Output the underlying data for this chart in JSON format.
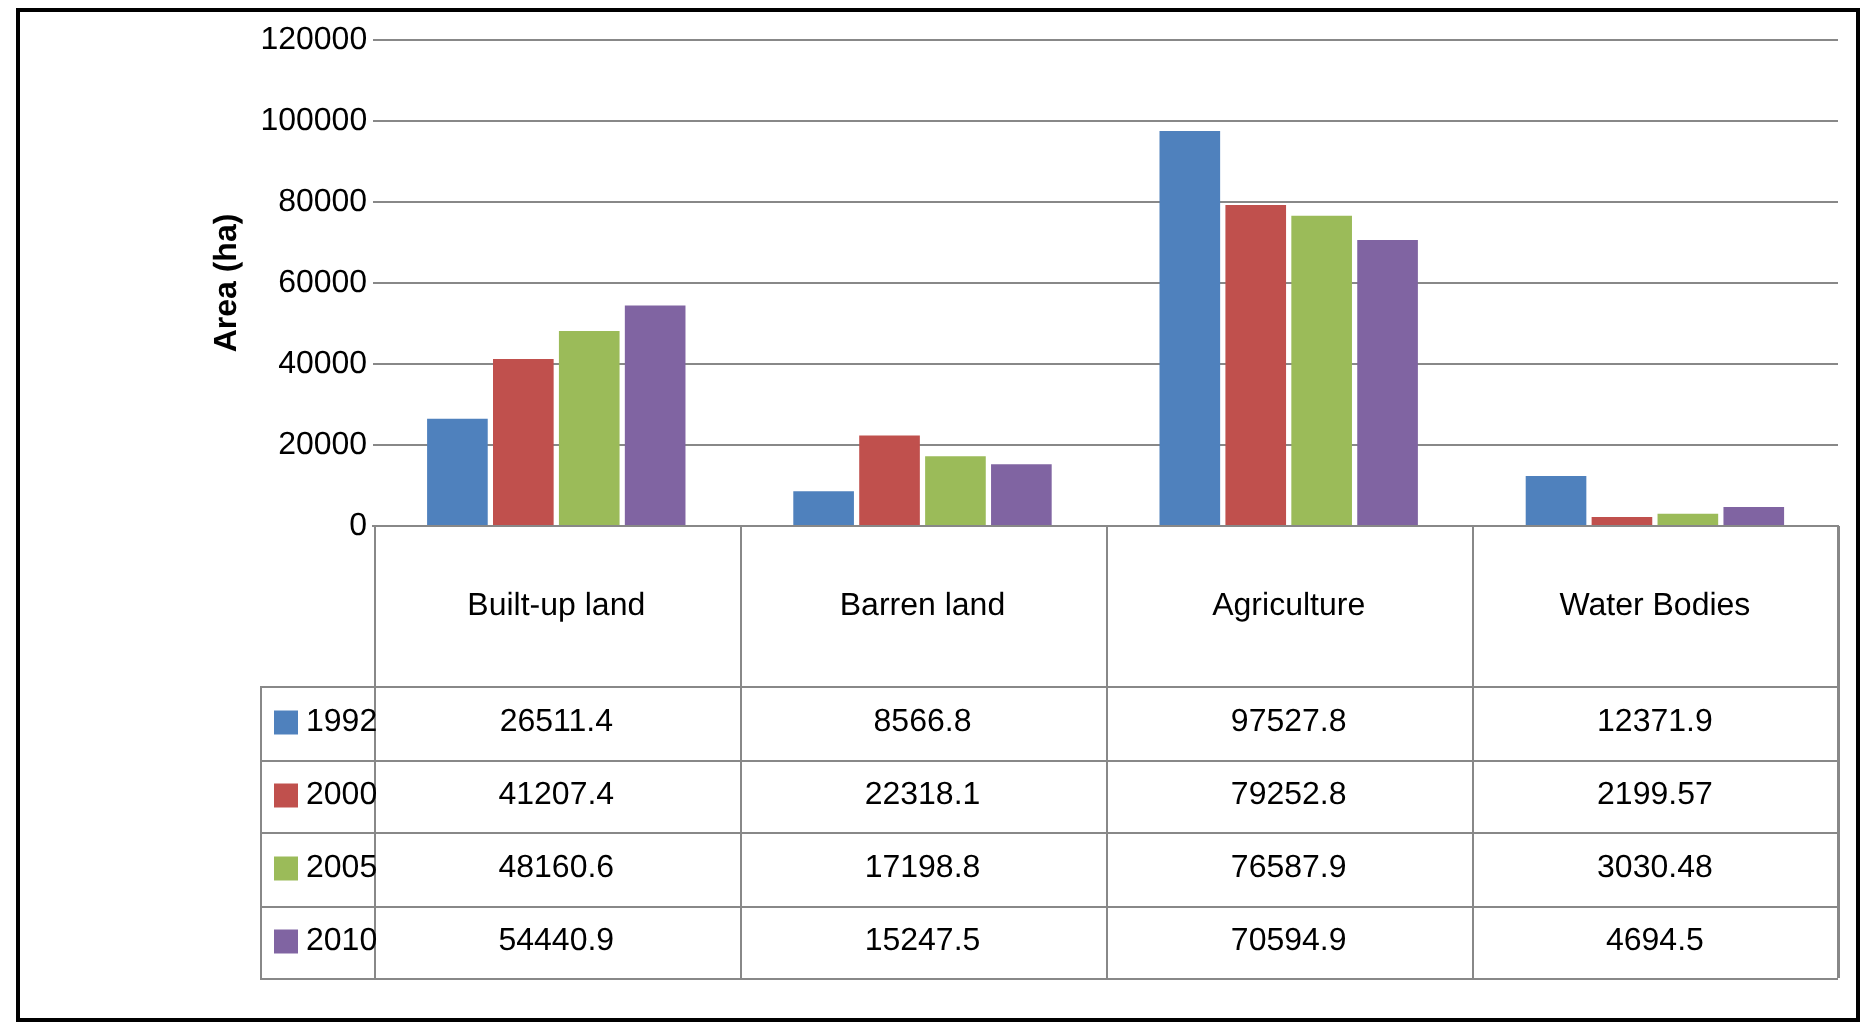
{
  "chart_data": {
    "type": "bar",
    "ylabel": "Area (ha)",
    "categories": [
      "Built-up land",
      "Barren land",
      "Agriculture",
      "Water Bodies"
    ],
    "series": [
      {
        "name": "1992",
        "color": "#4f81bd",
        "values": [
          26511.4,
          8566.8,
          97527.8,
          12371.9
        ]
      },
      {
        "name": "2000",
        "color": "#c0504d",
        "values": [
          41207.4,
          22318.1,
          79252.8,
          2199.57
        ]
      },
      {
        "name": "2005",
        "color": "#9bbb59",
        "values": [
          48160.6,
          17198.8,
          76587.9,
          3030.48
        ]
      },
      {
        "name": "2010",
        "color": "#8064a2",
        "values": [
          54440.9,
          15247.5,
          70594.9,
          4694.5
        ]
      }
    ],
    "ylim": [
      0,
      120000
    ],
    "yticks": [
      0,
      20000,
      40000,
      60000,
      80000,
      100000,
      120000
    ],
    "grid": "y",
    "legend": "bottom",
    "data_labels": true
  }
}
